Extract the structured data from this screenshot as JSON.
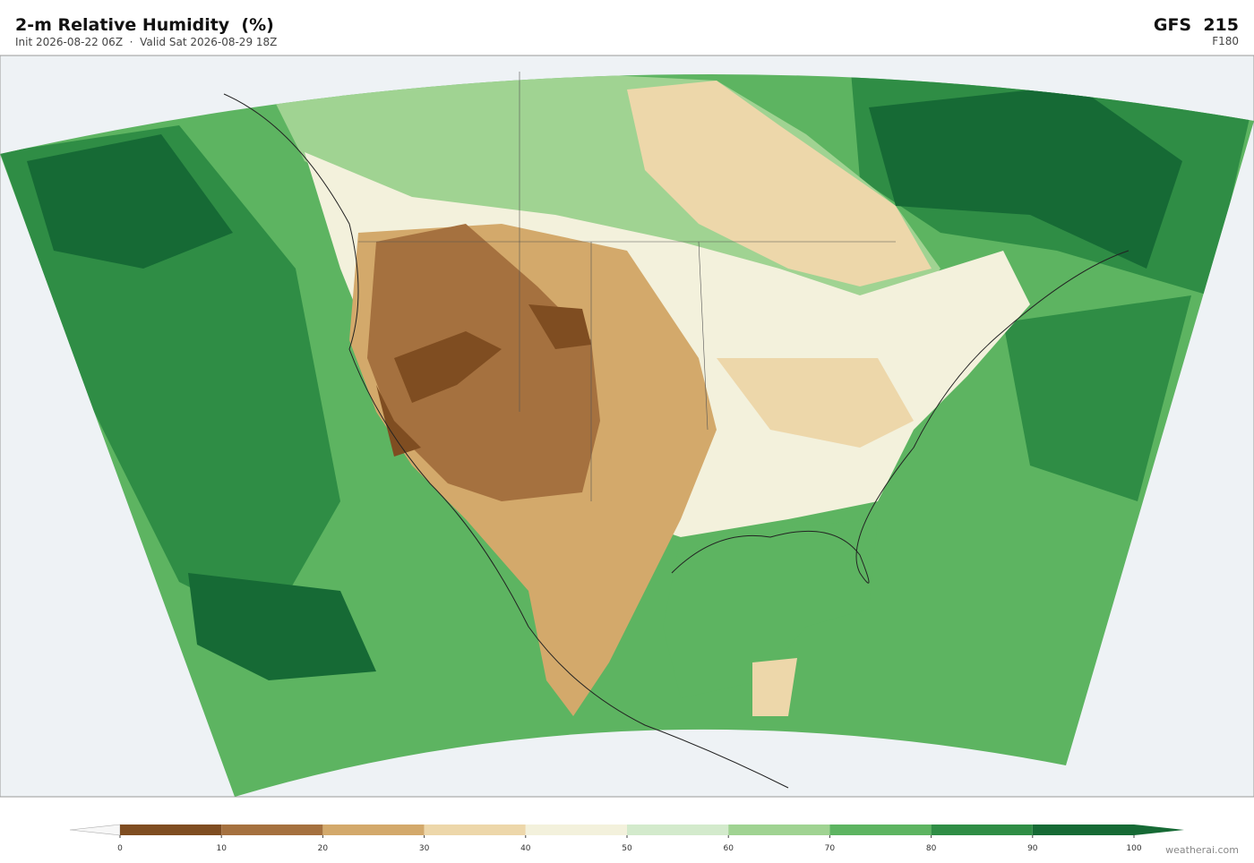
{
  "header": {
    "title": "2-m Relative Humidity  (%)",
    "subtitle": "Init 2026-08-22 06Z  ·  Valid Sat 2026-08-29 18Z",
    "model": "GFS  215",
    "forecast_hour": "F180"
  },
  "colorbar": {
    "ticks": [
      0,
      10,
      20,
      30,
      40,
      50,
      60,
      70,
      80,
      90,
      100
    ],
    "colors": [
      "#7f4d21",
      "#a5713f",
      "#d3a96b",
      "#edd7aa",
      "#f3f1dc",
      "#d3eacc",
      "#a0d392",
      "#5db461",
      "#2f8d45",
      "#166a35"
    ],
    "under_color": "#f7f7f7",
    "over_color": "#166a35"
  },
  "footer": {
    "credit": "weatherai.com"
  }
}
